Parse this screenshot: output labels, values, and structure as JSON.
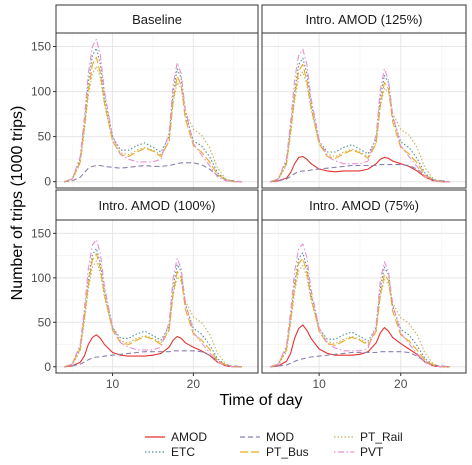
{
  "chart_data": {
    "type": "line",
    "xlabel": "Time of day",
    "ylabel": "Number of trips (1000 trips)",
    "x_ticks": [
      10,
      20
    ],
    "y_ticks": [
      0,
      50,
      100,
      150
    ],
    "xlim": [
      3,
      28
    ],
    "ylim": [
      -7,
      165
    ],
    "grid": true,
    "legend_position": "bottom",
    "x": [
      4,
      5,
      6,
      6.5,
      7,
      7.5,
      8,
      8.5,
      9,
      10,
      11,
      12,
      13,
      14,
      15,
      16,
      17,
      17.5,
      18,
      18.5,
      19,
      20,
      21,
      22,
      23,
      24,
      25,
      26
    ],
    "panels": [
      {
        "title": "Baseline",
        "series": [
          {
            "name": "MOD",
            "values": [
              0,
              1,
              5,
              10,
              15,
              17,
              18,
              18,
              17,
              16,
              15,
              16,
              17,
              18,
              17,
              17,
              18,
              19,
              20,
              21,
              21,
              21,
              19,
              14,
              7,
              2,
              1,
              0
            ]
          },
          {
            "name": "ETC",
            "values": [
              0,
              3,
              25,
              65,
              110,
              140,
              148,
              130,
              95,
              50,
              35,
              35,
              40,
              43,
              38,
              33,
              50,
              100,
              125,
              115,
              75,
              45,
              40,
              28,
              10,
              2,
              0,
              0
            ]
          },
          {
            "name": "PT_Bus",
            "values": [
              0,
              3,
              22,
              60,
              100,
              130,
              138,
              120,
              88,
              45,
              30,
              28,
              33,
              37,
              34,
              28,
              45,
              90,
              117,
              107,
              70,
              40,
              33,
              22,
              8,
              2,
              0,
              0
            ]
          },
          {
            "name": "PT_Rail",
            "values": [
              0,
              2,
              20,
              55,
              95,
              120,
              128,
              115,
              85,
              45,
              32,
              30,
              35,
              38,
              35,
              30,
              45,
              88,
              110,
              104,
              78,
              58,
              52,
              38,
              15,
              3,
              0,
              0
            ]
          },
          {
            "name": "PVT",
            "values": [
              0,
              3,
              28,
              70,
              120,
              150,
              158,
              140,
              100,
              50,
              30,
              25,
              22,
              22,
              22,
              25,
              55,
              108,
              132,
              120,
              80,
              42,
              30,
              18,
              5,
              1,
              0,
              0
            ]
          }
        ]
      },
      {
        "title": "Intro. AMOD (125%)",
        "series": [
          {
            "name": "AMOD",
            "values": [
              0,
              1,
              4,
              10,
              20,
              27,
              28,
              25,
              20,
              14,
              12,
              11,
              12,
              12,
              12,
              14,
              20,
              25,
              27,
              26,
              23,
              20,
              17,
              12,
              5,
              1,
              0,
              0
            ]
          },
          {
            "name": "MOD",
            "values": [
              0,
              1,
              3,
              6,
              9,
              11,
              12,
              12,
              13,
              14,
              15,
              16,
              17,
              18,
              18,
              18,
              18,
              19,
              19,
              19,
              19,
              19,
              18,
              14,
              7,
              2,
              1,
              0
            ]
          },
          {
            "name": "ETC",
            "values": [
              0,
              3,
              23,
              60,
              100,
              130,
              137,
              120,
              88,
              45,
              33,
              33,
              38,
              41,
              36,
              31,
              47,
              93,
              118,
              110,
              72,
              44,
              38,
              26,
              9,
              2,
              0,
              0
            ]
          },
          {
            "name": "PT_Bus",
            "values": [
              0,
              3,
              20,
              56,
              95,
              123,
              130,
              112,
              83,
              42,
              28,
              26,
              31,
              35,
              32,
              26,
              42,
              85,
              110,
              103,
              67,
              38,
              31,
              21,
              7,
              2,
              0,
              0
            ]
          },
          {
            "name": "PT_Rail",
            "values": [
              0,
              2,
              19,
              52,
              90,
              115,
              122,
              108,
              80,
              43,
              30,
              28,
              33,
              36,
              33,
              28,
              43,
              83,
              104,
              99,
              76,
              58,
              52,
              38,
              15,
              3,
              0,
              0
            ]
          },
          {
            "name": "PVT",
            "values": [
              0,
              3,
              26,
              66,
              113,
              140,
              147,
              130,
              93,
              47,
              28,
              23,
              20,
              20,
              20,
              23,
              52,
              102,
              125,
              113,
              75,
              40,
              28,
              17,
              5,
              1,
              0,
              0
            ]
          }
        ]
      },
      {
        "title": "Intro. AMOD (100%)",
        "series": [
          {
            "name": "AMOD",
            "values": [
              0,
              1,
              5,
              12,
              25,
              33,
              36,
              32,
              25,
              16,
              13,
              12,
              12,
              12,
              13,
              15,
              22,
              30,
              34,
              32,
              27,
              22,
              18,
              13,
              5,
              1,
              0,
              0
            ]
          },
          {
            "name": "MOD",
            "values": [
              0,
              1,
              3,
              5,
              8,
              10,
              11,
              11,
              12,
              13,
              14,
              15,
              16,
              17,
              17,
              17,
              17,
              18,
              18,
              18,
              18,
              18,
              17,
              13,
              7,
              2,
              1,
              0
            ]
          },
          {
            "name": "ETC",
            "values": [
              0,
              3,
              22,
              58,
              97,
              126,
              133,
              116,
              85,
              44,
              32,
              32,
              37,
              40,
              35,
              30,
              45,
              90,
              115,
              107,
              70,
              43,
              37,
              25,
              9,
              2,
              0,
              0
            ]
          },
          {
            "name": "PT_Bus",
            "values": [
              0,
              3,
              20,
              55,
              92,
              120,
              127,
              110,
              81,
              41,
              27,
              25,
              30,
              34,
              31,
              25,
              41,
              83,
              107,
              100,
              65,
              37,
              30,
              20,
              7,
              2,
              0,
              0
            ]
          },
          {
            "name": "PT_Rail",
            "values": [
              0,
              2,
              18,
              50,
              87,
              112,
              119,
              105,
              78,
              42,
              29,
              27,
              32,
              35,
              32,
              27,
              42,
              81,
              101,
              96,
              74,
              56,
              50,
              37,
              15,
              3,
              0,
              0
            ]
          },
          {
            "name": "PVT",
            "values": [
              0,
              3,
              25,
              64,
              110,
              137,
              143,
              127,
              90,
              45,
              27,
              22,
              19,
              19,
              19,
              22,
              50,
              100,
              122,
              110,
              73,
              39,
              27,
              16,
              5,
              1,
              0,
              0
            ]
          }
        ]
      },
      {
        "title": "Intro. AMOD (75%)",
        "series": [
          {
            "name": "AMOD",
            "values": [
              0,
              1,
              6,
              15,
              32,
              43,
              47,
              41,
              32,
              20,
              15,
              13,
              13,
              13,
              14,
              17,
              27,
              38,
              44,
              40,
              33,
              26,
              20,
              14,
              5,
              1,
              0,
              0
            ]
          },
          {
            "name": "MOD",
            "values": [
              0,
              1,
              2,
              4,
              6,
              8,
              9,
              10,
              11,
              12,
              13,
              14,
              15,
              16,
              16,
              16,
              16,
              17,
              17,
              17,
              17,
              17,
              16,
              12,
              6,
              2,
              1,
              0
            ]
          },
          {
            "name": "ETC",
            "values": [
              0,
              3,
              21,
              56,
              94,
              122,
              128,
              112,
              82,
              43,
              31,
              31,
              36,
              39,
              34,
              29,
              44,
              88,
              112,
              104,
              68,
              42,
              36,
              24,
              9,
              2,
              0,
              0
            ]
          },
          {
            "name": "PT_Bus",
            "values": [
              0,
              3,
              19,
              53,
              89,
              116,
              122,
              106,
              78,
              40,
              26,
              24,
              29,
              33,
              30,
              24,
              40,
              81,
              104,
              97,
              63,
              36,
              29,
              19,
              7,
              2,
              0,
              0
            ]
          },
          {
            "name": "PT_Rail",
            "values": [
              0,
              2,
              17,
              48,
              84,
              108,
              114,
              101,
              75,
              41,
              28,
              26,
              31,
              34,
              31,
              26,
              41,
              79,
              98,
              93,
              72,
              55,
              49,
              36,
              15,
              3,
              0,
              0
            ]
          },
          {
            "name": "PVT",
            "values": [
              0,
              3,
              24,
              62,
              107,
              133,
              138,
              123,
              87,
              44,
              26,
              21,
              18,
              18,
              18,
              21,
              48,
              97,
              118,
              107,
              71,
              38,
              26,
              15,
              5,
              1,
              0,
              0
            ]
          }
        ]
      }
    ],
    "legend": [
      {
        "name": "AMOD",
        "color": "#e4312e",
        "dash": "solid"
      },
      {
        "name": "ETC",
        "color": "#4d8e9e",
        "dash": "dotted"
      },
      {
        "name": "MOD",
        "color": "#8a7fb0",
        "dash": "dashed"
      },
      {
        "name": "PT_Bus",
        "color": "#f0a81e",
        "dash": "longdash"
      },
      {
        "name": "PT_Rail",
        "color": "#c9b25a",
        "dash": "dotted"
      },
      {
        "name": "PVT",
        "color": "#ea8fd2",
        "dash": "dotdash"
      }
    ]
  }
}
